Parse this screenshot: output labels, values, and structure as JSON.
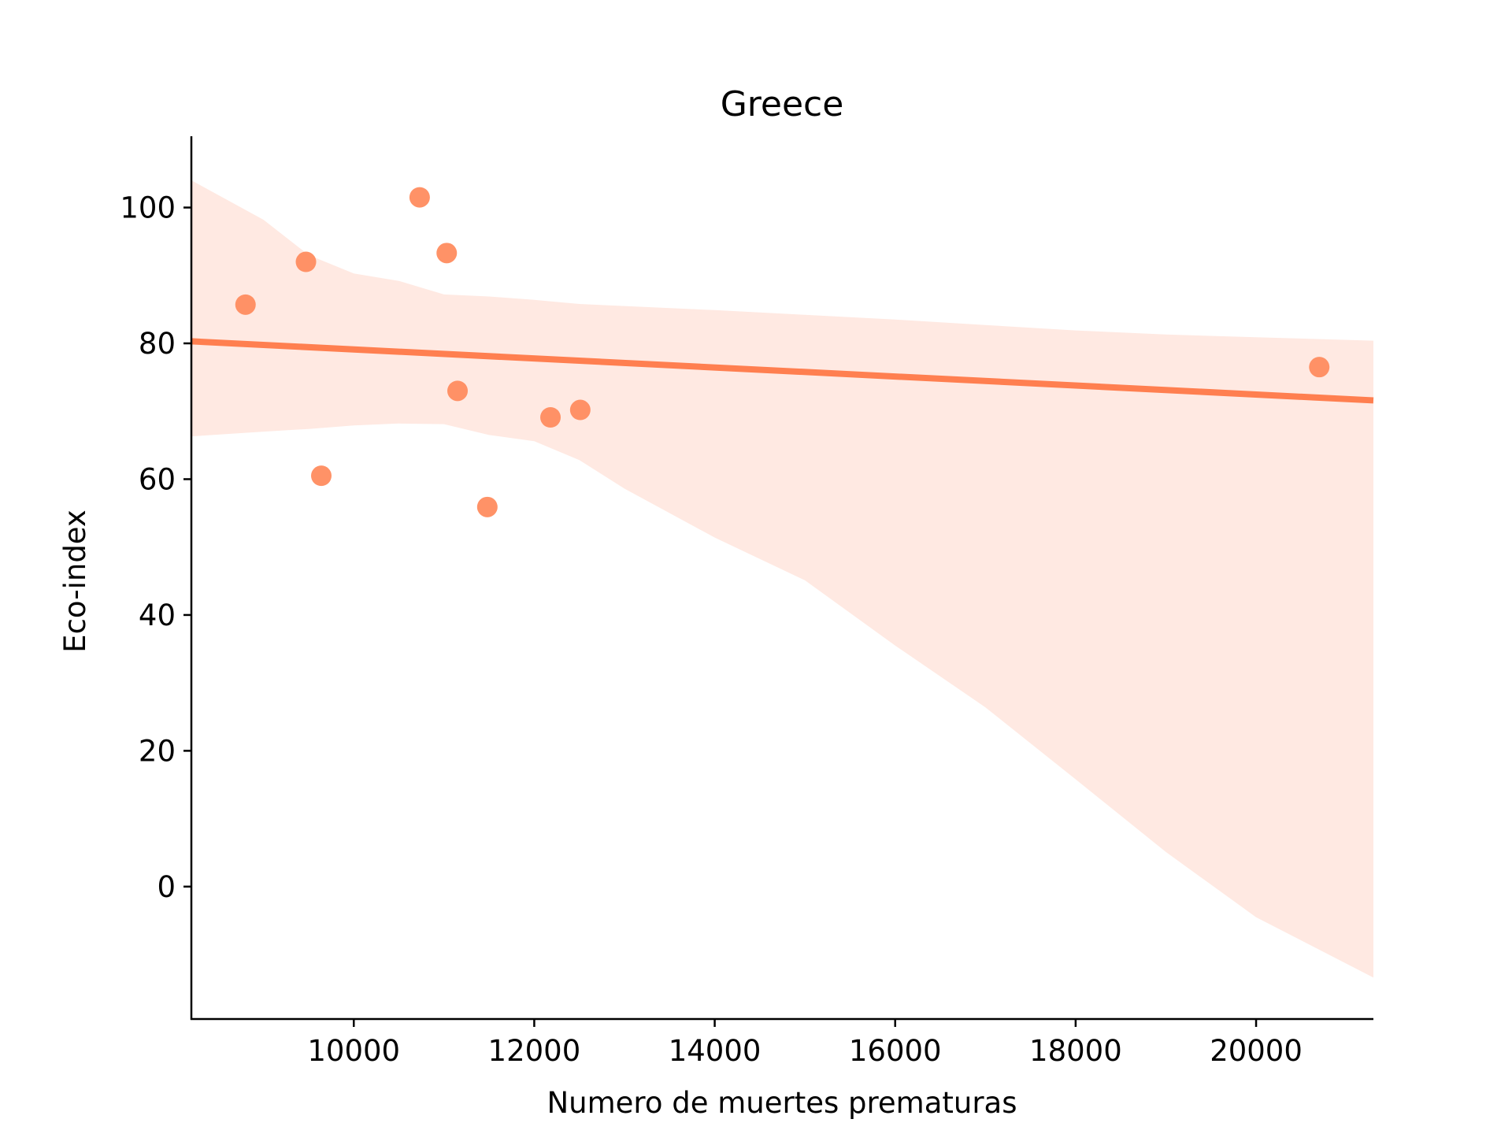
{
  "chart_data": {
    "type": "scatter",
    "title": "Greece",
    "xlabel": "Numero de muertes prematuras",
    "ylabel": "Eco-index",
    "xlim": [
      8200,
      21300
    ],
    "ylim": [
      -19.5,
      110.5
    ],
    "xticks": [
      10000,
      12000,
      14000,
      16000,
      18000,
      20000
    ],
    "xtick_labels": [
      "10000",
      "12000",
      "14000",
      "16000",
      "18000",
      "20000"
    ],
    "yticks": [
      0,
      20,
      40,
      60,
      80,
      100
    ],
    "ytick_labels": [
      "0",
      "20",
      "40",
      "60",
      "80",
      "100"
    ],
    "grid": false,
    "colors": {
      "points": "#ff8c5f",
      "line": "#ff7f50",
      "band": "#ffe9e2"
    },
    "points": [
      {
        "x": 8800,
        "y": 85.7
      },
      {
        "x": 9470,
        "y": 92.0
      },
      {
        "x": 9640,
        "y": 60.5
      },
      {
        "x": 10730,
        "y": 101.5
      },
      {
        "x": 11030,
        "y": 93.3
      },
      {
        "x": 11150,
        "y": 73.0
      },
      {
        "x": 11480,
        "y": 55.9
      },
      {
        "x": 12180,
        "y": 69.1
      },
      {
        "x": 12510,
        "y": 70.2
      },
      {
        "x": 20700,
        "y": 76.5
      }
    ],
    "regression_line": {
      "x": [
        8200,
        21300
      ],
      "y": [
        80.3,
        71.6
      ]
    },
    "confidence_band": {
      "x": [
        8200,
        9000,
        9500,
        10000,
        10500,
        11000,
        11500,
        12000,
        12500,
        13000,
        14000,
        15000,
        16000,
        17000,
        18000,
        19000,
        20000,
        21300
      ],
      "upper": [
        104.0,
        98.2,
        93.0,
        90.3,
        89.2,
        87.2,
        86.9,
        86.4,
        85.8,
        85.5,
        84.9,
        84.2,
        83.5,
        82.7,
        81.9,
        81.3,
        80.9,
        80.4
      ],
      "lower": [
        66.3,
        67.0,
        67.4,
        67.9,
        68.2,
        68.1,
        66.5,
        65.6,
        62.8,
        58.6,
        51.4,
        45.1,
        35.5,
        26.4,
        15.8,
        5.1,
        -4.5,
        -13.4
      ]
    }
  }
}
